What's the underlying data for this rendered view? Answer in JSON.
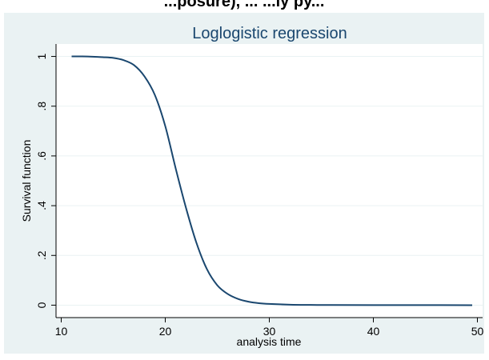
{
  "header": {
    "cropped_title": "...posure), ... ...ly py..."
  },
  "chart_data": {
    "type": "line",
    "title": "Loglogistic regression",
    "xlabel": "analysis time",
    "ylabel": "Survival function",
    "xlim": [
      9.5,
      50.5
    ],
    "ylim": [
      -0.05,
      1.05
    ],
    "x_ticks": [
      10,
      20,
      30,
      40,
      50
    ],
    "x_tick_labels": [
      "10",
      "20",
      "30",
      "40",
      "50"
    ],
    "y_ticks": [
      0,
      0.2,
      0.4,
      0.6,
      0.8,
      1
    ],
    "y_tick_labels": [
      "0",
      ".2",
      ".4",
      ".6",
      ".8",
      "1"
    ],
    "grid": true,
    "legend": "none",
    "colors": {
      "outer_background": "#eaf2f3",
      "plot_background": "#ffffff",
      "line": "#1a476f",
      "title": "#1a476f",
      "grid": "#eaf2f3"
    },
    "series": [
      {
        "x": [
          11,
          12,
          13,
          14,
          15,
          16,
          17,
          18,
          19,
          20,
          21,
          22,
          23,
          24,
          25,
          26,
          27,
          28,
          29,
          30,
          32,
          34,
          36,
          40,
          45,
          49.5
        ],
        "values": [
          1.0,
          1.0,
          0.999,
          0.997,
          0.994,
          0.985,
          0.965,
          0.92,
          0.845,
          0.72,
          0.55,
          0.39,
          0.25,
          0.145,
          0.08,
          0.045,
          0.025,
          0.014,
          0.008,
          0.005,
          0.002,
          0.001,
          0.0005,
          0.0002,
          0.0001,
          0.0
        ]
      }
    ]
  }
}
